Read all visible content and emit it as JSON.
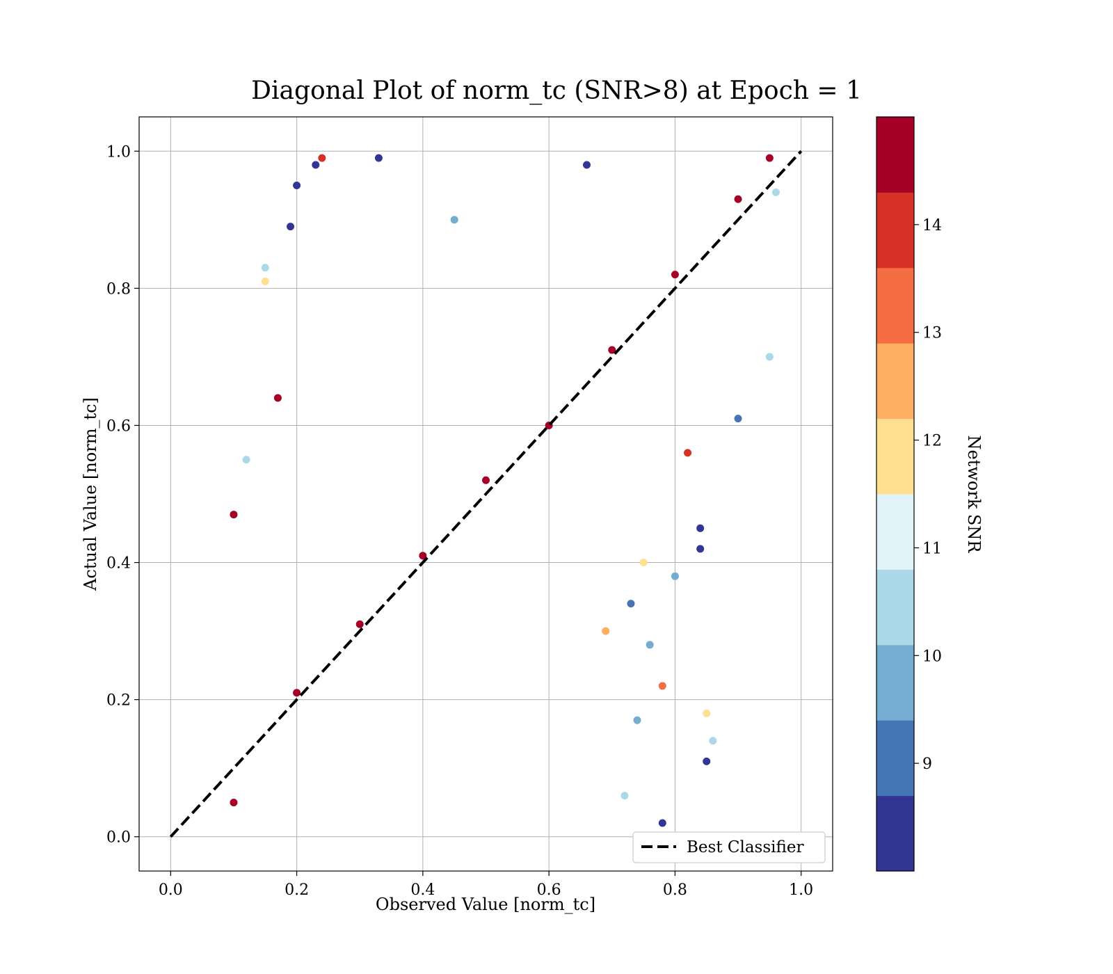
{
  "chart_data": {
    "type": "scatter",
    "title": "Diagonal Plot of norm_tc (SNR>8) at Epoch = 1",
    "xlabel": "Observed Value [norm_tc]",
    "ylabel": "Actual Value [norm_tc]",
    "xlim": [
      -0.05,
      1.05
    ],
    "ylim": [
      -0.05,
      1.05
    ],
    "xticks": [
      "0.0",
      "0.2",
      "0.4",
      "0.6",
      "0.8",
      "1.0"
    ],
    "yticks": [
      "0.0",
      "0.2",
      "0.4",
      "0.6",
      "0.8",
      "1.0"
    ],
    "grid": true,
    "reference_line": {
      "label": "Best Classifier",
      "from": [
        0,
        0
      ],
      "to": [
        1,
        1
      ],
      "style": "dashed",
      "color": "#000000"
    },
    "legend_position": "bottom-right",
    "colorbar": {
      "label": "Network SNR",
      "range": [
        8,
        15
      ],
      "ticks": [
        "9",
        "10",
        "11",
        "12",
        "13",
        "14"
      ],
      "colors": [
        "#313695",
        "#4575b4",
        "#74add1",
        "#abd9e9",
        "#e0f3f8",
        "#fee090",
        "#fdae61",
        "#f46d43",
        "#d73027",
        "#a50026"
      ]
    },
    "points": [
      {
        "x": 0.1,
        "y": 0.05,
        "snr": 14.8
      },
      {
        "x": 0.2,
        "y": 0.21,
        "snr": 14.6
      },
      {
        "x": 0.3,
        "y": 0.31,
        "snr": 14.5
      },
      {
        "x": 0.4,
        "y": 0.41,
        "snr": 14.7
      },
      {
        "x": 0.5,
        "y": 0.52,
        "snr": 14.4
      },
      {
        "x": 0.6,
        "y": 0.6,
        "snr": 14.6
      },
      {
        "x": 0.7,
        "y": 0.71,
        "snr": 14.8
      },
      {
        "x": 0.8,
        "y": 0.82,
        "snr": 14.5
      },
      {
        "x": 0.9,
        "y": 0.93,
        "snr": 14.7
      },
      {
        "x": 0.95,
        "y": 0.99,
        "snr": 14.6
      },
      {
        "x": 0.24,
        "y": 0.99,
        "snr": 14.2
      },
      {
        "x": 0.23,
        "y": 0.98,
        "snr": 8.3
      },
      {
        "x": 0.2,
        "y": 0.95,
        "snr": 8.2
      },
      {
        "x": 0.19,
        "y": 0.89,
        "snr": 8.4
      },
      {
        "x": 0.15,
        "y": 0.83,
        "snr": 10.6
      },
      {
        "x": 0.15,
        "y": 0.81,
        "snr": 12.1
      },
      {
        "x": 0.17,
        "y": 0.64,
        "snr": 14.5
      },
      {
        "x": 0.12,
        "y": 0.55,
        "snr": 10.5
      },
      {
        "x": 0.1,
        "y": 0.47,
        "snr": 14.3
      },
      {
        "x": 0.66,
        "y": 0.98,
        "snr": 8.6
      },
      {
        "x": 0.45,
        "y": 0.9,
        "snr": 9.4
      },
      {
        "x": 0.33,
        "y": 0.99,
        "snr": 8.3
      },
      {
        "x": 0.84,
        "y": 0.45,
        "snr": 8.2
      },
      {
        "x": 0.84,
        "y": 0.42,
        "snr": 8.3
      },
      {
        "x": 0.8,
        "y": 0.38,
        "snr": 10.1
      },
      {
        "x": 0.75,
        "y": 0.4,
        "snr": 12.2
      },
      {
        "x": 0.78,
        "y": 0.22,
        "snr": 13.5
      },
      {
        "x": 0.85,
        "y": 0.18,
        "snr": 12.0
      },
      {
        "x": 0.86,
        "y": 0.14,
        "snr": 10.6
      },
      {
        "x": 0.85,
        "y": 0.11,
        "snr": 8.2
      },
      {
        "x": 0.73,
        "y": 0.34,
        "snr": 9.0
      },
      {
        "x": 0.76,
        "y": 0.28,
        "snr": 9.8
      },
      {
        "x": 0.69,
        "y": 0.3,
        "snr": 12.8
      },
      {
        "x": 0.74,
        "y": 0.17,
        "snr": 10.0
      },
      {
        "x": 0.72,
        "y": 0.06,
        "snr": 10.5
      },
      {
        "x": 0.78,
        "y": 0.02,
        "snr": 8.4
      },
      {
        "x": 0.9,
        "y": 0.61,
        "snr": 9.0
      },
      {
        "x": 0.95,
        "y": 0.7,
        "snr": 10.3
      },
      {
        "x": 0.96,
        "y": 0.94,
        "snr": 10.6
      },
      {
        "x": 0.82,
        "y": 0.56,
        "snr": 13.8
      }
    ]
  },
  "legend": {
    "label": "Best Classifier"
  }
}
